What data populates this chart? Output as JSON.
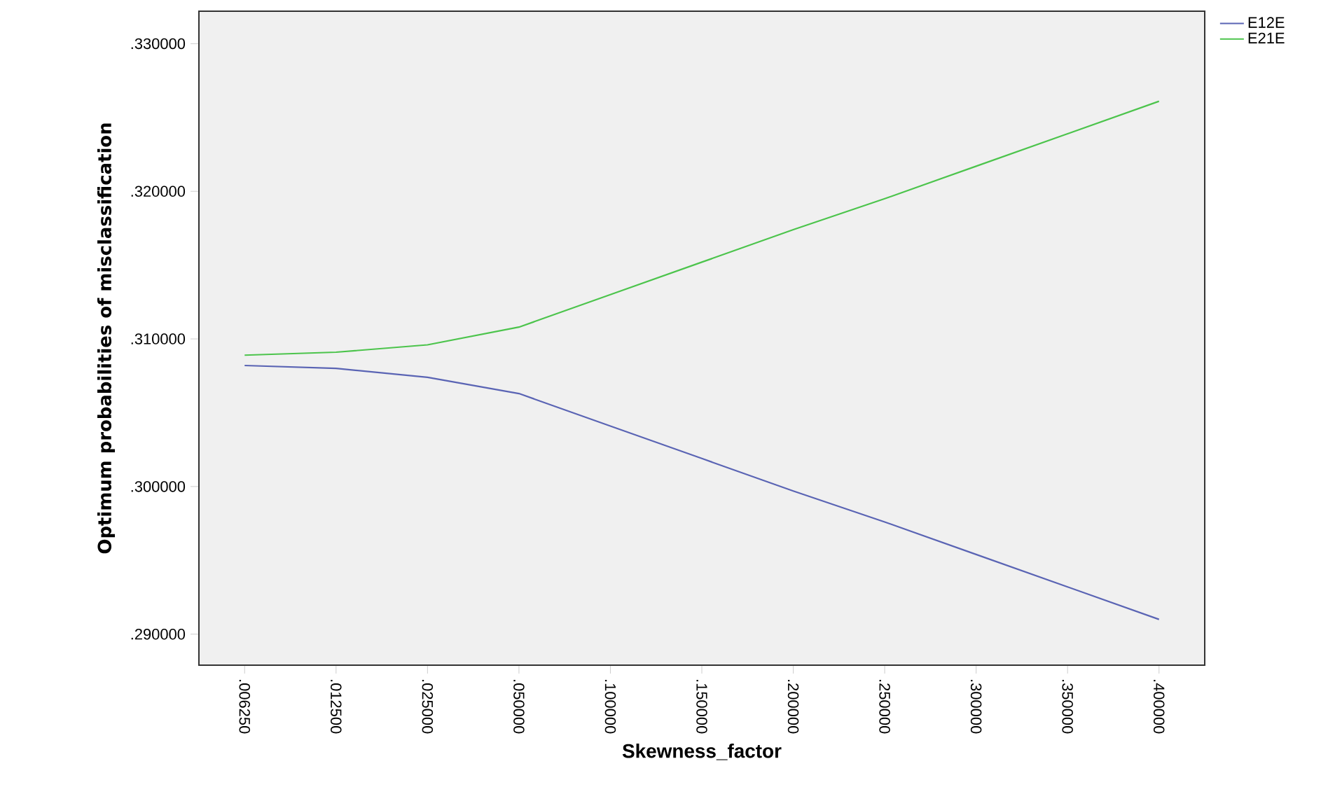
{
  "chart_data": {
    "type": "line",
    "xlabel": "Skewness_factor",
    "ylabel": "Optimum probabilities of misclassification",
    "categories": [
      ".006250",
      ".012500",
      ".025000",
      ".050000",
      ".100000",
      ".150000",
      ".200000",
      ".250000",
      ".300000",
      ".350000",
      ".400000"
    ],
    "series": [
      {
        "name": "E12E",
        "color": "#5a64b4",
        "values": [
          0.3082,
          0.308,
          0.3074,
          0.3063,
          0.3041,
          0.3019,
          0.2997,
          0.2976,
          0.2954,
          0.2932,
          0.291
        ]
      },
      {
        "name": "E21E",
        "color": "#4cc44c",
        "values": [
          0.3089,
          0.3091,
          0.3096,
          0.3108,
          0.313,
          0.3152,
          0.3174,
          0.3195,
          0.3217,
          0.3239,
          0.3261
        ]
      }
    ],
    "ylim": [
      0.2879,
      0.3322
    ],
    "yticks": [
      {
        "value": 0.29,
        "label": ".290000"
      },
      {
        "value": 0.3,
        "label": ".300000"
      },
      {
        "value": 0.31,
        "label": ".310000"
      },
      {
        "value": 0.32,
        "label": ".320000"
      },
      {
        "value": 0.33,
        "label": ".330000"
      }
    ],
    "legend": "top right",
    "grid": false,
    "marker": "none",
    "line_style": "solid"
  }
}
